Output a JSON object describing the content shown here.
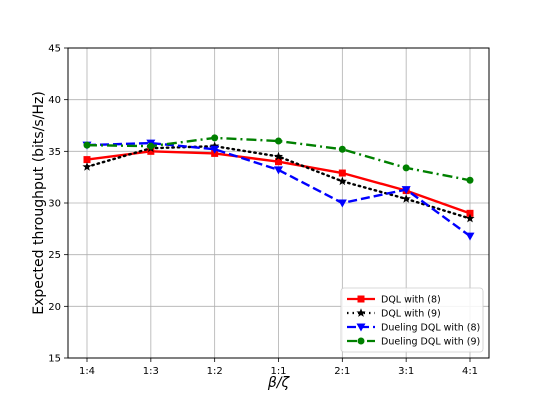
{
  "chart_data": {
    "type": "line",
    "title": "",
    "xlabel": "β/ζ",
    "ylabel": "Expected throughput (bits/s/Hz)",
    "categories": [
      "1:4",
      "1:3",
      "1:2",
      "1:1",
      "2:1",
      "3:1",
      "4:1"
    ],
    "ylim": [
      15,
      45
    ],
    "yticks": [
      15,
      20,
      25,
      30,
      35,
      40,
      45
    ],
    "grid": true,
    "legend_position": "lower-right",
    "series": [
      {
        "name": "DQL with (8)",
        "color": "#ff0000",
        "dash": "solid",
        "marker": "square",
        "values": [
          34.2,
          35.0,
          34.8,
          34.0,
          32.9,
          31.2,
          29.0
        ]
      },
      {
        "name": "DQL with (9)",
        "color": "#000000",
        "dash": "dotted",
        "marker": "star",
        "values": [
          33.5,
          35.3,
          35.5,
          34.5,
          32.1,
          30.4,
          28.5
        ]
      },
      {
        "name": "Dueling DQL with (8)",
        "color": "#0000ff",
        "dash": "dashed",
        "marker": "triangle-down",
        "values": [
          35.6,
          35.8,
          35.2,
          33.2,
          30.0,
          31.3,
          26.8
        ]
      },
      {
        "name": "Dueling DQL with (9)",
        "color": "#008000",
        "dash": "dashdot",
        "marker": "circle",
        "values": [
          35.6,
          35.5,
          36.3,
          36.0,
          35.2,
          33.4,
          32.2
        ]
      }
    ]
  }
}
